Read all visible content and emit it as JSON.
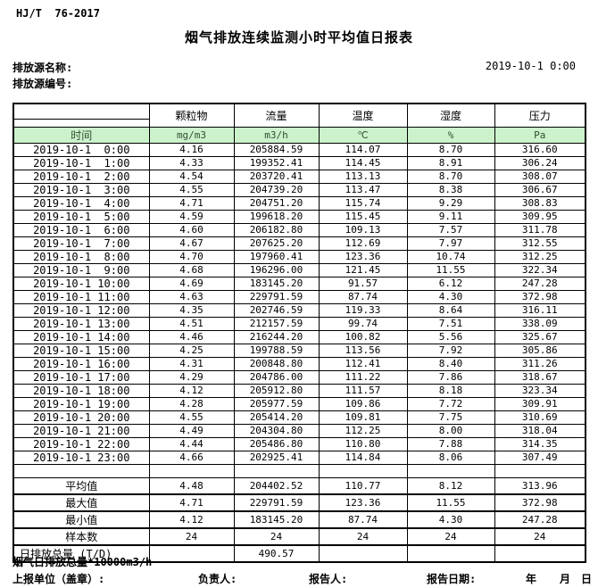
{
  "doc": {
    "standard": "HJ/T  76-2017",
    "title": "烟气排放连续监测小时平均值日报表",
    "source_name_label": "排放源名称:",
    "source_code_label": "排放源编号:",
    "datetime": "2019-10-1 0:00"
  },
  "table": {
    "time_header": "时间",
    "columns": [
      {
        "name": "颗粒物",
        "unit": "mg/m3"
      },
      {
        "name": "流量",
        "unit": "m3/h"
      },
      {
        "name": "温度",
        "unit": "℃"
      },
      {
        "name": "湿度",
        "unit": "%"
      },
      {
        "name": "压力",
        "unit": "Pa"
      }
    ],
    "rows": [
      {
        "time": "2019-10-1  0:00",
        "values": [
          "4.16",
          "205884.59",
          "114.07",
          "8.70",
          "316.60"
        ]
      },
      {
        "time": "2019-10-1  1:00",
        "values": [
          "4.33",
          "199352.41",
          "114.45",
          "8.91",
          "306.24"
        ]
      },
      {
        "time": "2019-10-1  2:00",
        "values": [
          "4.54",
          "203720.41",
          "113.13",
          "8.70",
          "308.07"
        ]
      },
      {
        "time": "2019-10-1  3:00",
        "values": [
          "4.55",
          "204739.20",
          "113.47",
          "8.38",
          "306.67"
        ]
      },
      {
        "time": "2019-10-1  4:00",
        "values": [
          "4.71",
          "204751.20",
          "115.74",
          "9.29",
          "308.83"
        ]
      },
      {
        "time": "2019-10-1  5:00",
        "values": [
          "4.59",
          "199618.20",
          "115.45",
          "9.11",
          "309.95"
        ]
      },
      {
        "time": "2019-10-1  6:00",
        "values": [
          "4.60",
          "206182.80",
          "109.13",
          "7.57",
          "311.78"
        ]
      },
      {
        "time": "2019-10-1  7:00",
        "values": [
          "4.67",
          "207625.20",
          "112.69",
          "7.97",
          "312.55"
        ]
      },
      {
        "time": "2019-10-1  8:00",
        "values": [
          "4.70",
          "197960.41",
          "123.36",
          "10.74",
          "312.25"
        ]
      },
      {
        "time": "2019-10-1  9:00",
        "values": [
          "4.68",
          "196296.00",
          "121.45",
          "11.55",
          "322.34"
        ]
      },
      {
        "time": "2019-10-1 10:00",
        "values": [
          "4.69",
          "183145.20",
          "91.57",
          "6.12",
          "247.28"
        ]
      },
      {
        "time": "2019-10-1 11:00",
        "values": [
          "4.63",
          "229791.59",
          "87.74",
          "4.30",
          "372.98"
        ]
      },
      {
        "time": "2019-10-1 12:00",
        "values": [
          "4.35",
          "202746.59",
          "119.33",
          "8.64",
          "316.11"
        ]
      },
      {
        "time": "2019-10-1 13:00",
        "values": [
          "4.51",
          "212157.59",
          "99.74",
          "7.51",
          "338.09"
        ]
      },
      {
        "time": "2019-10-1 14:00",
        "values": [
          "4.46",
          "216244.20",
          "100.82",
          "5.56",
          "325.67"
        ]
      },
      {
        "time": "2019-10-1 15:00",
        "values": [
          "4.25",
          "199788.59",
          "113.56",
          "7.92",
          "305.86"
        ]
      },
      {
        "time": "2019-10-1 16:00",
        "values": [
          "4.31",
          "200848.80",
          "112.41",
          "8.40",
          "311.26"
        ]
      },
      {
        "time": "2019-10-1 17:00",
        "values": [
          "4.29",
          "204786.00",
          "111.22",
          "7.86",
          "318.67"
        ]
      },
      {
        "time": "2019-10-1 18:00",
        "values": [
          "4.12",
          "205912.80",
          "111.57",
          "8.18",
          "323.34"
        ]
      },
      {
        "time": "2019-10-1 19:00",
        "values": [
          "4.28",
          "205977.59",
          "109.86",
          "7.72",
          "309.91"
        ]
      },
      {
        "time": "2019-10-1 20:00",
        "values": [
          "4.55",
          "205414.20",
          "109.81",
          "7.75",
          "310.69"
        ]
      },
      {
        "time": "2019-10-1 21:00",
        "values": [
          "4.49",
          "204304.80",
          "112.25",
          "8.00",
          "318.04"
        ]
      },
      {
        "time": "2019-10-1 22:00",
        "values": [
          "4.44",
          "205486.80",
          "110.80",
          "7.88",
          "314.35"
        ]
      },
      {
        "time": "2019-10-1 23:00",
        "values": [
          "4.66",
          "202925.41",
          "114.84",
          "8.06",
          "307.49"
        ]
      }
    ],
    "summary": [
      {
        "label": "平均值",
        "values": [
          "4.48",
          "204402.52",
          "110.77",
          "8.12",
          "313.96"
        ]
      },
      {
        "label": "最大值",
        "values": [
          "4.71",
          "229791.59",
          "123.36",
          "11.55",
          "372.98"
        ]
      },
      {
        "label": "最小值",
        "values": [
          "4.12",
          "183145.20",
          "87.74",
          "4.30",
          "247.28"
        ]
      },
      {
        "label": "样本数",
        "values": [
          "24",
          "24",
          "24",
          "24",
          "24"
        ]
      },
      {
        "label": "日排放总量 (T/D)",
        "values": [
          "",
          "490.57",
          "",
          "",
          ""
        ]
      }
    ]
  },
  "footer": {
    "note": "烟气日排放总量*10000m3/h",
    "report_unit_label": "上报单位（盖章）:",
    "responsible_label": "负责人:",
    "reporter_label": "报告人:",
    "report_date_label": "报告日期:",
    "year_label": "年",
    "month_label": "月",
    "day_label": "日"
  },
  "colors": {
    "unit_row_background": "#ccf2cc",
    "unit_row_text": "#2f4f2f",
    "table_border": "#000000"
  }
}
